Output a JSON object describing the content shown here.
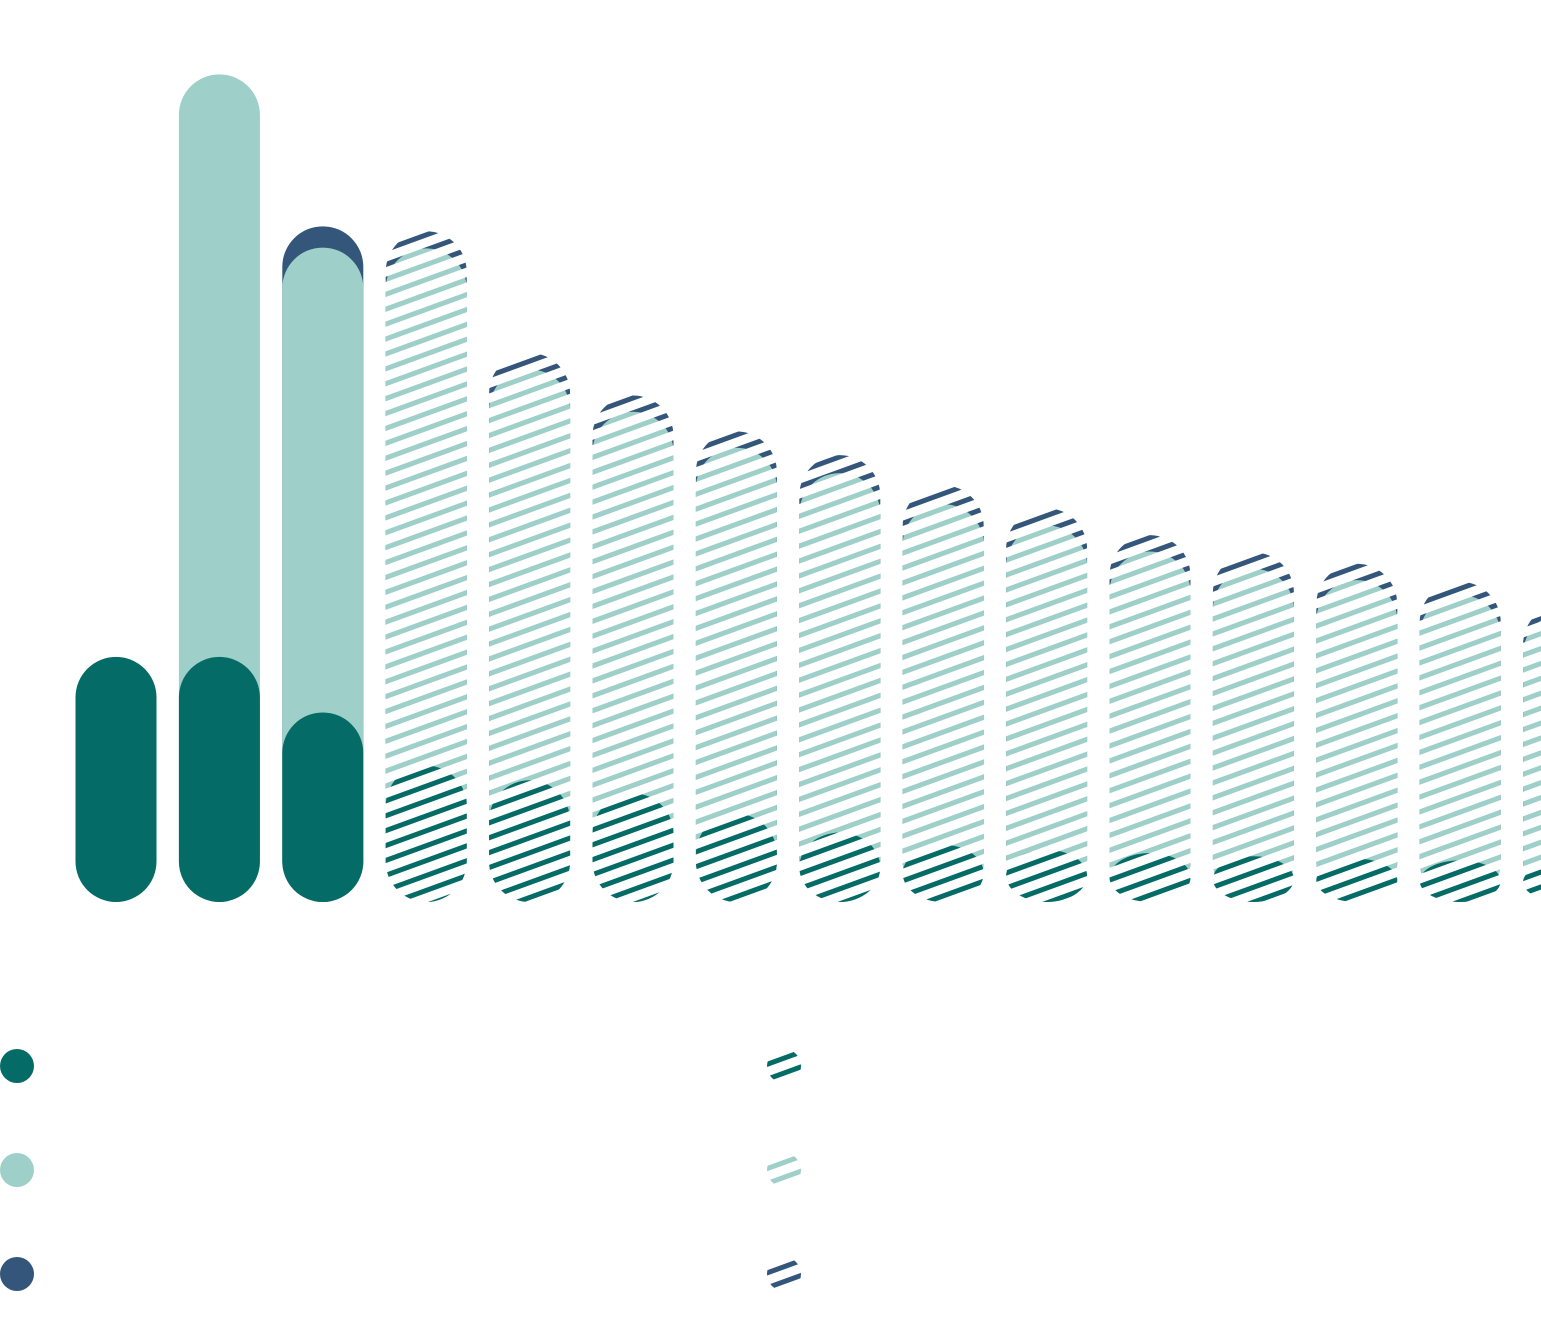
{
  "chart_data": {
    "type": "bar",
    "stacked": true,
    "rounded_bars": true,
    "title": "",
    "xlabel": "",
    "ylabel": "",
    "ylim": [
      0,
      100
    ],
    "grid": false,
    "legend_position": "bottom",
    "categories": [
      "",
      "",
      "",
      "",
      "",
      "",
      "",
      "",
      "",
      "",
      "",
      "",
      "",
      "",
      ""
    ],
    "series": [
      {
        "color": "#056b66",
        "values": [
          30,
          30,
          23.2,
          16.7,
          14.9,
          13.3,
          10.8,
          8.5,
          7.0,
          6.4,
          6.0,
          5.6,
          5.3,
          5.1,
          4.9
        ],
        "projected": [
          false,
          false,
          false,
          true,
          true,
          true,
          true,
          true,
          true,
          true,
          true,
          true,
          true,
          true,
          true
        ]
      },
      {
        "color": "#9ecfc9",
        "values": [
          0,
          71.3,
          56.9,
          63.3,
          50.3,
          46.7,
          44.8,
          44.0,
          41.7,
          39.7,
          36.9,
          35.2,
          34.1,
          32.5,
          30.4
        ],
        "projected": [
          false,
          false,
          false,
          true,
          true,
          true,
          true,
          true,
          true,
          true,
          true,
          true,
          true,
          true,
          true
        ]
      },
      {
        "color": "#34567a",
        "values": [
          0,
          0,
          2.6,
          2.1,
          2.0,
          2.0,
          2.0,
          2.2,
          2.3,
          2.1,
          2.0,
          2.0,
          2.0,
          1.6,
          1.2
        ],
        "projected": [
          false,
          false,
          false,
          true,
          true,
          true,
          true,
          true,
          true,
          true,
          true,
          true,
          true,
          true,
          true
        ]
      }
    ],
    "legend": [
      {
        "color": "#056b66",
        "style": "solid",
        "label": ""
      },
      {
        "color": "#9ecfc9",
        "style": "solid",
        "label": ""
      },
      {
        "color": "#34567a",
        "style": "solid",
        "label": ""
      },
      {
        "color": "#056b66",
        "style": "hatched",
        "label": ""
      },
      {
        "color": "#9ecfc9",
        "style": "hatched",
        "label": ""
      },
      {
        "color": "#34567a",
        "style": "hatched",
        "label": ""
      }
    ]
  }
}
